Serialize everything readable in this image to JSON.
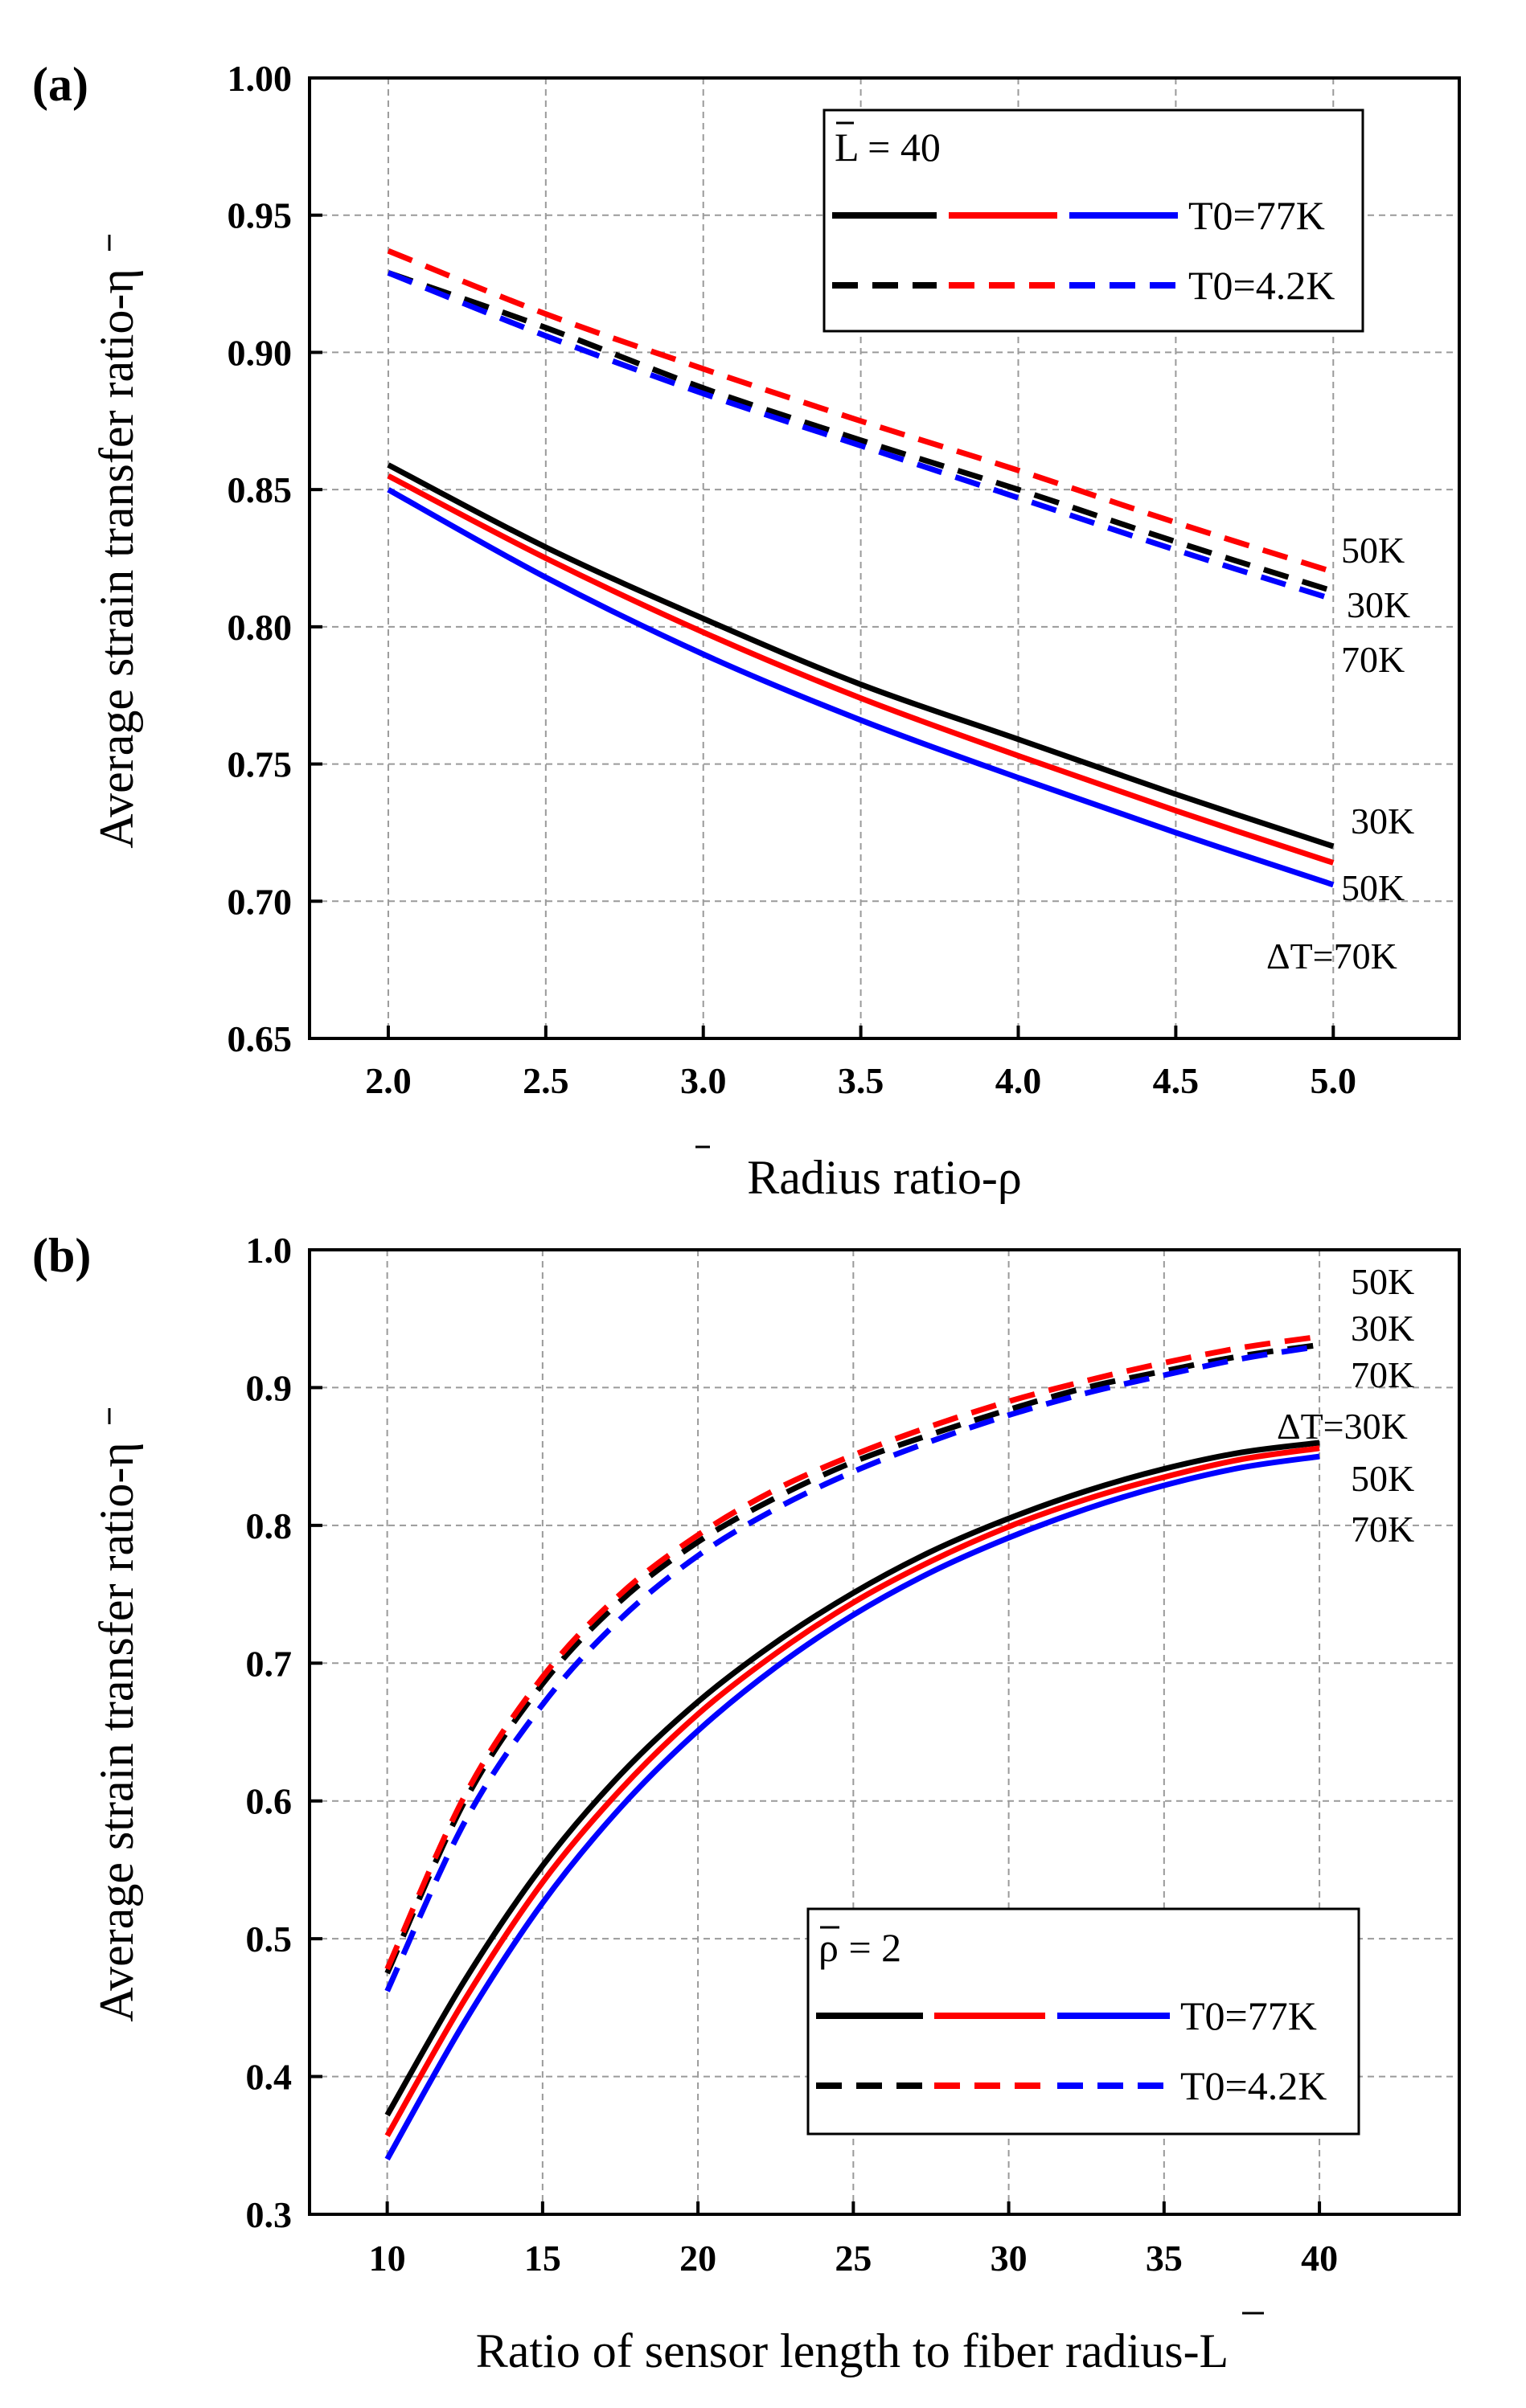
{
  "colors": {
    "black": "#000000",
    "red": "#ff0000",
    "blue": "#0000ff"
  },
  "chart_data": [
    {
      "type": "line",
      "panel_label": "(a)",
      "xlabel": "Radius ratio-ρ",
      "ylabel": "Average strain transfer ratio-η",
      "xlim": [
        1.75,
        5.4
      ],
      "ylim": [
        0.65,
        1.0
      ],
      "xticks": [
        "2.0",
        "2.5",
        "3.0",
        "3.5",
        "4.0",
        "4.5",
        "5.0"
      ],
      "yticks": [
        "0.65",
        "0.70",
        "0.75",
        "0.80",
        "0.85",
        "0.90",
        "0.95",
        "1.00"
      ],
      "grid": true,
      "legend": {
        "placement": "top-right",
        "header": "L = 40",
        "solid_label": "T0=77K",
        "dashed_label": "T0=4.2K"
      },
      "annotations": {
        "dashed": [
          "50K",
          "30K",
          "70K"
        ],
        "solid": [
          "30K",
          "50K",
          "ΔT=70K"
        ]
      },
      "series": [
        {
          "name": "T0=77K, ΔT=30K",
          "color": "black",
          "dash": false,
          "x": [
            2.0,
            2.5,
            3.0,
            3.5,
            4.0,
            4.5,
            5.0
          ],
          "y": [
            0.859,
            0.829,
            0.803,
            0.779,
            0.759,
            0.739,
            0.72
          ]
        },
        {
          "name": "T0=77K, ΔT=50K",
          "color": "red",
          "dash": false,
          "x": [
            2.0,
            2.5,
            3.0,
            3.5,
            4.0,
            4.5,
            5.0
          ],
          "y": [
            0.855,
            0.825,
            0.798,
            0.774,
            0.753,
            0.733,
            0.714
          ]
        },
        {
          "name": "T0=77K, ΔT=70K",
          "color": "blue",
          "dash": false,
          "x": [
            2.0,
            2.5,
            3.0,
            3.5,
            4.0,
            4.5,
            5.0
          ],
          "y": [
            0.85,
            0.818,
            0.79,
            0.766,
            0.745,
            0.725,
            0.706
          ]
        },
        {
          "name": "T0=4.2K, ΔT=30K",
          "color": "black",
          "dash": true,
          "x": [
            2.0,
            2.5,
            3.0,
            3.5,
            4.0,
            4.5,
            5.0
          ],
          "y": [
            0.929,
            0.909,
            0.887,
            0.868,
            0.85,
            0.831,
            0.813
          ]
        },
        {
          "name": "T0=4.2K, ΔT=50K",
          "color": "red",
          "dash": true,
          "x": [
            2.0,
            2.5,
            3.0,
            3.5,
            4.0,
            4.5,
            5.0
          ],
          "y": [
            0.937,
            0.914,
            0.894,
            0.875,
            0.857,
            0.838,
            0.82
          ]
        },
        {
          "name": "T0=4.2K, ΔT=70K",
          "color": "blue",
          "dash": true,
          "x": [
            2.0,
            2.5,
            3.0,
            3.5,
            4.0,
            4.5,
            5.0
          ],
          "y": [
            0.929,
            0.906,
            0.885,
            0.866,
            0.847,
            0.828,
            0.81
          ]
        }
      ]
    },
    {
      "type": "line",
      "panel_label": "(b)",
      "xlabel": "Ratio of sensor length to fiber radius-L",
      "ylabel": "Average strain transfer ratio-η",
      "xlim": [
        7.5,
        44.5
      ],
      "ylim": [
        0.3,
        1.0
      ],
      "xticks": [
        "10",
        "15",
        "20",
        "25",
        "30",
        "35",
        "40"
      ],
      "yticks": [
        "0.3",
        "0.4",
        "0.5",
        "0.6",
        "0.7",
        "0.8",
        "0.9",
        "1.0"
      ],
      "grid": true,
      "legend": {
        "placement": "bottom-right",
        "header": "ρ = 2",
        "solid_label": "T0=77K",
        "dashed_label": "T0=4.2K"
      },
      "annotations": {
        "dashed": [
          "50K",
          "30K",
          "70K"
        ],
        "solid": [
          "ΔT=30K",
          "50K",
          "70K"
        ]
      },
      "series": [
        {
          "name": "T0=77K, ΔT=30K",
          "color": "black",
          "dash": false,
          "x": [
            10,
            12.5,
            15,
            17.5,
            20,
            22.5,
            25,
            27.5,
            30,
            32.5,
            35,
            37.5,
            40
          ],
          "y": [
            0.372,
            0.47,
            0.553,
            0.619,
            0.672,
            0.715,
            0.751,
            0.781,
            0.805,
            0.825,
            0.841,
            0.853,
            0.86
          ]
        },
        {
          "name": "T0=77K, ΔT=50K",
          "color": "red",
          "dash": false,
          "x": [
            10,
            12.5,
            15,
            17.5,
            20,
            22.5,
            25,
            27.5,
            30,
            32.5,
            35,
            37.5,
            40
          ],
          "y": [
            0.357,
            0.456,
            0.541,
            0.608,
            0.663,
            0.707,
            0.744,
            0.774,
            0.799,
            0.819,
            0.835,
            0.848,
            0.856
          ]
        },
        {
          "name": "T0=77K, ΔT=70K",
          "color": "blue",
          "dash": false,
          "x": [
            10,
            12.5,
            15,
            17.5,
            20,
            22.5,
            25,
            27.5,
            30,
            32.5,
            35,
            37.5,
            40
          ],
          "y": [
            0.34,
            0.44,
            0.526,
            0.595,
            0.651,
            0.697,
            0.735,
            0.766,
            0.791,
            0.812,
            0.829,
            0.842,
            0.85
          ]
        },
        {
          "name": "T0=4.2K, ΔT=30K",
          "color": "black",
          "dash": true,
          "x": [
            10,
            12.5,
            15,
            17.5,
            20,
            22.5,
            25,
            27.5,
            30,
            32.5,
            35,
            37.5,
            40
          ],
          "y": [
            0.475,
            0.6,
            0.685,
            0.745,
            0.788,
            0.82,
            0.846,
            0.866,
            0.884,
            0.9,
            0.912,
            0.923,
            0.931
          ]
        },
        {
          "name": "T0=4.2K, ΔT=50K",
          "color": "red",
          "dash": true,
          "x": [
            10,
            12.5,
            15,
            17.5,
            20,
            22.5,
            25,
            27.5,
            30,
            32.5,
            35,
            37.5,
            40
          ],
          "y": [
            0.478,
            0.604,
            0.69,
            0.75,
            0.793,
            0.826,
            0.851,
            0.872,
            0.89,
            0.905,
            0.918,
            0.929,
            0.937
          ]
        },
        {
          "name": "T0=4.2K, ΔT=70K",
          "color": "blue",
          "dash": true,
          "x": [
            10,
            12.5,
            15,
            17.5,
            20,
            22.5,
            25,
            27.5,
            30,
            32.5,
            35,
            37.5,
            40
          ],
          "y": [
            0.462,
            0.585,
            0.67,
            0.732,
            0.778,
            0.812,
            0.839,
            0.861,
            0.88,
            0.896,
            0.909,
            0.921,
            0.93
          ]
        }
      ]
    }
  ]
}
